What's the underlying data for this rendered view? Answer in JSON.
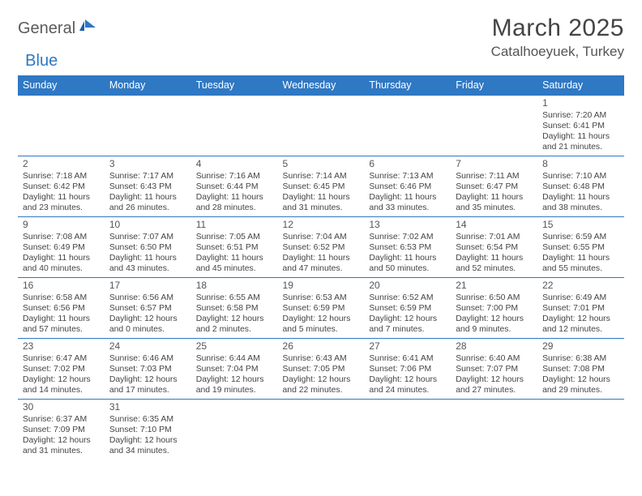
{
  "brand": {
    "part1": "General",
    "part2": "Blue"
  },
  "title": "March 2025",
  "location": "Catalhoeyuek, Turkey",
  "colors": {
    "header_bg": "#2f78c4",
    "header_fg": "#ffffff",
    "border": "#2f78c4",
    "text": "#444444"
  },
  "day_headers": [
    "Sunday",
    "Monday",
    "Tuesday",
    "Wednesday",
    "Thursday",
    "Friday",
    "Saturday"
  ],
  "weeks": [
    [
      null,
      null,
      null,
      null,
      null,
      null,
      {
        "n": "1",
        "sr": "Sunrise: 7:20 AM",
        "ss": "Sunset: 6:41 PM",
        "dl": "Daylight: 11 hours and 21 minutes."
      }
    ],
    [
      {
        "n": "2",
        "sr": "Sunrise: 7:18 AM",
        "ss": "Sunset: 6:42 PM",
        "dl": "Daylight: 11 hours and 23 minutes."
      },
      {
        "n": "3",
        "sr": "Sunrise: 7:17 AM",
        "ss": "Sunset: 6:43 PM",
        "dl": "Daylight: 11 hours and 26 minutes."
      },
      {
        "n": "4",
        "sr": "Sunrise: 7:16 AM",
        "ss": "Sunset: 6:44 PM",
        "dl": "Daylight: 11 hours and 28 minutes."
      },
      {
        "n": "5",
        "sr": "Sunrise: 7:14 AM",
        "ss": "Sunset: 6:45 PM",
        "dl": "Daylight: 11 hours and 31 minutes."
      },
      {
        "n": "6",
        "sr": "Sunrise: 7:13 AM",
        "ss": "Sunset: 6:46 PM",
        "dl": "Daylight: 11 hours and 33 minutes."
      },
      {
        "n": "7",
        "sr": "Sunrise: 7:11 AM",
        "ss": "Sunset: 6:47 PM",
        "dl": "Daylight: 11 hours and 35 minutes."
      },
      {
        "n": "8",
        "sr": "Sunrise: 7:10 AM",
        "ss": "Sunset: 6:48 PM",
        "dl": "Daylight: 11 hours and 38 minutes."
      }
    ],
    [
      {
        "n": "9",
        "sr": "Sunrise: 7:08 AM",
        "ss": "Sunset: 6:49 PM",
        "dl": "Daylight: 11 hours and 40 minutes."
      },
      {
        "n": "10",
        "sr": "Sunrise: 7:07 AM",
        "ss": "Sunset: 6:50 PM",
        "dl": "Daylight: 11 hours and 43 minutes."
      },
      {
        "n": "11",
        "sr": "Sunrise: 7:05 AM",
        "ss": "Sunset: 6:51 PM",
        "dl": "Daylight: 11 hours and 45 minutes."
      },
      {
        "n": "12",
        "sr": "Sunrise: 7:04 AM",
        "ss": "Sunset: 6:52 PM",
        "dl": "Daylight: 11 hours and 47 minutes."
      },
      {
        "n": "13",
        "sr": "Sunrise: 7:02 AM",
        "ss": "Sunset: 6:53 PM",
        "dl": "Daylight: 11 hours and 50 minutes."
      },
      {
        "n": "14",
        "sr": "Sunrise: 7:01 AM",
        "ss": "Sunset: 6:54 PM",
        "dl": "Daylight: 11 hours and 52 minutes."
      },
      {
        "n": "15",
        "sr": "Sunrise: 6:59 AM",
        "ss": "Sunset: 6:55 PM",
        "dl": "Daylight: 11 hours and 55 minutes."
      }
    ],
    [
      {
        "n": "16",
        "sr": "Sunrise: 6:58 AM",
        "ss": "Sunset: 6:56 PM",
        "dl": "Daylight: 11 hours and 57 minutes."
      },
      {
        "n": "17",
        "sr": "Sunrise: 6:56 AM",
        "ss": "Sunset: 6:57 PM",
        "dl": "Daylight: 12 hours and 0 minutes."
      },
      {
        "n": "18",
        "sr": "Sunrise: 6:55 AM",
        "ss": "Sunset: 6:58 PM",
        "dl": "Daylight: 12 hours and 2 minutes."
      },
      {
        "n": "19",
        "sr": "Sunrise: 6:53 AM",
        "ss": "Sunset: 6:59 PM",
        "dl": "Daylight: 12 hours and 5 minutes."
      },
      {
        "n": "20",
        "sr": "Sunrise: 6:52 AM",
        "ss": "Sunset: 6:59 PM",
        "dl": "Daylight: 12 hours and 7 minutes."
      },
      {
        "n": "21",
        "sr": "Sunrise: 6:50 AM",
        "ss": "Sunset: 7:00 PM",
        "dl": "Daylight: 12 hours and 9 minutes."
      },
      {
        "n": "22",
        "sr": "Sunrise: 6:49 AM",
        "ss": "Sunset: 7:01 PM",
        "dl": "Daylight: 12 hours and 12 minutes."
      }
    ],
    [
      {
        "n": "23",
        "sr": "Sunrise: 6:47 AM",
        "ss": "Sunset: 7:02 PM",
        "dl": "Daylight: 12 hours and 14 minutes."
      },
      {
        "n": "24",
        "sr": "Sunrise: 6:46 AM",
        "ss": "Sunset: 7:03 PM",
        "dl": "Daylight: 12 hours and 17 minutes."
      },
      {
        "n": "25",
        "sr": "Sunrise: 6:44 AM",
        "ss": "Sunset: 7:04 PM",
        "dl": "Daylight: 12 hours and 19 minutes."
      },
      {
        "n": "26",
        "sr": "Sunrise: 6:43 AM",
        "ss": "Sunset: 7:05 PM",
        "dl": "Daylight: 12 hours and 22 minutes."
      },
      {
        "n": "27",
        "sr": "Sunrise: 6:41 AM",
        "ss": "Sunset: 7:06 PM",
        "dl": "Daylight: 12 hours and 24 minutes."
      },
      {
        "n": "28",
        "sr": "Sunrise: 6:40 AM",
        "ss": "Sunset: 7:07 PM",
        "dl": "Daylight: 12 hours and 27 minutes."
      },
      {
        "n": "29",
        "sr": "Sunrise: 6:38 AM",
        "ss": "Sunset: 7:08 PM",
        "dl": "Daylight: 12 hours and 29 minutes."
      }
    ],
    [
      {
        "n": "30",
        "sr": "Sunrise: 6:37 AM",
        "ss": "Sunset: 7:09 PM",
        "dl": "Daylight: 12 hours and 31 minutes."
      },
      {
        "n": "31",
        "sr": "Sunrise: 6:35 AM",
        "ss": "Sunset: 7:10 PM",
        "dl": "Daylight: 12 hours and 34 minutes."
      },
      null,
      null,
      null,
      null,
      null
    ]
  ]
}
